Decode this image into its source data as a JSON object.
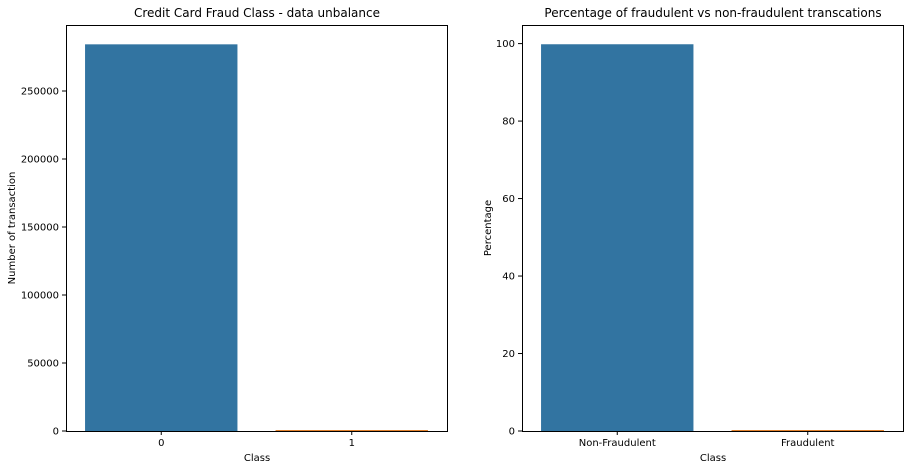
{
  "chart_data": [
    {
      "type": "bar",
      "title": "Credit Card Fraud Class - data unbalance",
      "xlabel": "Class",
      "ylabel": "Number of transaction",
      "categories": [
        "0",
        "1"
      ],
      "values": [
        284315,
        492
      ],
      "colors": [
        "#3274a1",
        "#e1812c"
      ],
      "ylim": [
        0,
        298530
      ],
      "yticks": [
        0,
        50000,
        100000,
        150000,
        200000,
        250000
      ],
      "grid": false,
      "legend": "none"
    },
    {
      "type": "bar",
      "title": "Percentage of fraudulent vs non-fraudulent transcations",
      "xlabel": "Class",
      "ylabel": "Percentage",
      "categories": [
        "Non-Fraudulent",
        "Fraudulent"
      ],
      "values": [
        99.83,
        0.17
      ],
      "colors": [
        "#3274a1",
        "#e1812c"
      ],
      "ylim": [
        0,
        104.8
      ],
      "yticks": [
        0,
        20,
        40,
        60,
        80,
        100
      ],
      "grid": false,
      "legend": "none"
    }
  ]
}
